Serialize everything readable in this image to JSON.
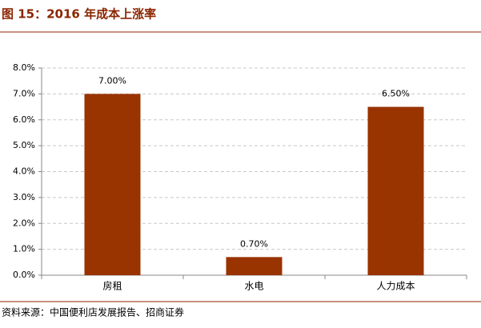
{
  "chart_data": {
    "type": "bar",
    "title": "图 15：2016 年成本上涨率",
    "categories": [
      "房租",
      "水电",
      "人力成本"
    ],
    "values": [
      7.0,
      0.7,
      6.5
    ],
    "value_labels": [
      "7.00%",
      "0.70%",
      "6.50%"
    ],
    "color": "#993300",
    "ylim": [
      0,
      8
    ],
    "yticks": [
      {
        "value": 0,
        "label": "0.0%"
      },
      {
        "value": 1,
        "label": "1.0%"
      },
      {
        "value": 2,
        "label": "2.0%"
      },
      {
        "value": 3,
        "label": "3.0%"
      },
      {
        "value": 4,
        "label": "4.0%"
      },
      {
        "value": 5,
        "label": "5.0%"
      },
      {
        "value": 6,
        "label": "6.0%"
      },
      {
        "value": 7,
        "label": "7.0%"
      },
      {
        "value": 8,
        "label": "8.0%"
      }
    ],
    "grid": true,
    "source": "资料来源：中国便利店发展报告、招商证券"
  }
}
